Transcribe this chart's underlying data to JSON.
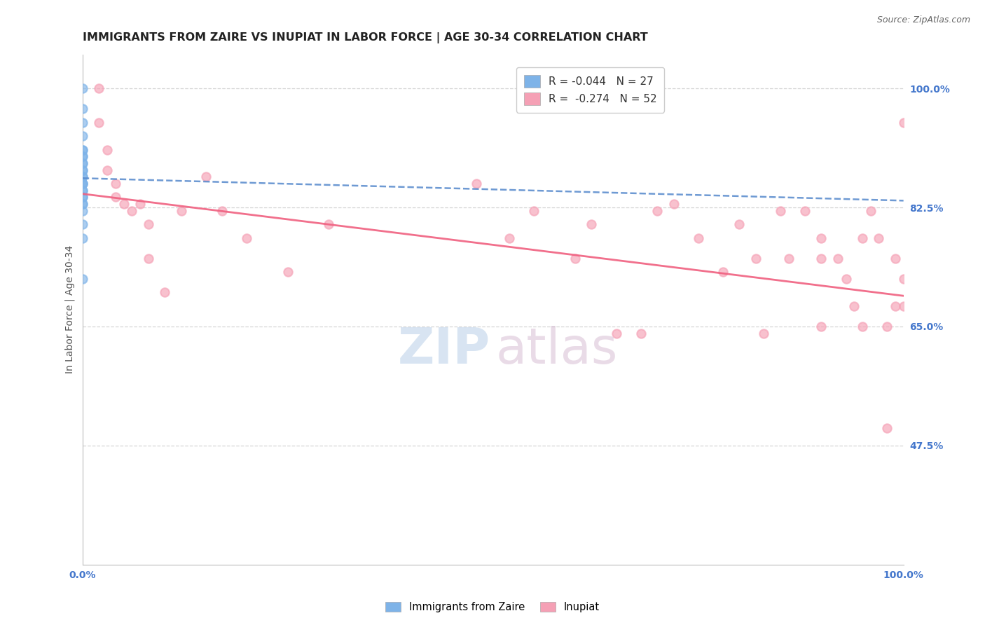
{
  "title": "IMMIGRANTS FROM ZAIRE VS INUPIAT IN LABOR FORCE | AGE 30-34 CORRELATION CHART",
  "source_text": "Source: ZipAtlas.com",
  "ylabel": "In Labor Force | Age 30-34",
  "xlim": [
    0.0,
    1.0
  ],
  "ylim": [
    0.3,
    1.05
  ],
  "ytick_labels": [
    "47.5%",
    "65.0%",
    "82.5%",
    "100.0%"
  ],
  "ytick_values": [
    0.475,
    0.65,
    0.825,
    1.0
  ],
  "xtick_labels": [
    "0.0%",
    "100.0%"
  ],
  "xtick_values": [
    0.0,
    1.0
  ],
  "legend_r_zaire": "-0.044",
  "legend_n_zaire": "27",
  "legend_r_inupiat": "-0.274",
  "legend_n_inupiat": "52",
  "zaire_color": "#7eb3e8",
  "inupiat_color": "#f5a0b5",
  "zaire_line_color": "#5588cc",
  "inupiat_line_color": "#f06080",
  "zaire_line_x0": 0.0,
  "zaire_line_x1": 1.0,
  "zaire_line_y0": 0.868,
  "zaire_line_y1": 0.835,
  "inupiat_line_x0": 0.0,
  "inupiat_line_x1": 1.0,
  "inupiat_line_y0": 0.845,
  "inupiat_line_y1": 0.695,
  "zaire_points_x": [
    0.0,
    0.0,
    0.0,
    0.0,
    0.0,
    0.0,
    0.0,
    0.0,
    0.0,
    0.0,
    0.0,
    0.0,
    0.0,
    0.0,
    0.0,
    0.0,
    0.0,
    0.0,
    0.0,
    0.0,
    0.0,
    0.0,
    0.0,
    0.0,
    0.0,
    0.0,
    0.0
  ],
  "zaire_points_y": [
    1.0,
    0.97,
    0.95,
    0.93,
    0.91,
    0.91,
    0.9,
    0.9,
    0.89,
    0.89,
    0.88,
    0.88,
    0.87,
    0.87,
    0.86,
    0.86,
    0.86,
    0.85,
    0.85,
    0.84,
    0.84,
    0.83,
    0.83,
    0.82,
    0.8,
    0.78,
    0.72
  ],
  "inupiat_points_x": [
    0.02,
    0.02,
    0.03,
    0.03,
    0.04,
    0.04,
    0.05,
    0.06,
    0.07,
    0.08,
    0.08,
    0.1,
    0.12,
    0.15,
    0.17,
    0.2,
    0.25,
    0.3,
    0.48,
    0.52,
    0.55,
    0.6,
    0.62,
    0.65,
    0.68,
    0.7,
    0.72,
    0.75,
    0.78,
    0.8,
    0.82,
    0.83,
    0.85,
    0.86,
    0.88,
    0.9,
    0.9,
    0.9,
    0.92,
    0.93,
    0.94,
    0.95,
    0.95,
    0.96,
    0.97,
    0.98,
    0.98,
    0.99,
    0.99,
    1.0,
    1.0,
    1.0
  ],
  "inupiat_points_y": [
    1.0,
    0.95,
    0.91,
    0.88,
    0.86,
    0.84,
    0.83,
    0.82,
    0.83,
    0.8,
    0.75,
    0.7,
    0.82,
    0.87,
    0.82,
    0.78,
    0.73,
    0.8,
    0.86,
    0.78,
    0.82,
    0.75,
    0.8,
    0.64,
    0.64,
    0.82,
    0.83,
    0.78,
    0.73,
    0.8,
    0.75,
    0.64,
    0.82,
    0.75,
    0.82,
    0.78,
    0.75,
    0.65,
    0.75,
    0.72,
    0.68,
    0.78,
    0.65,
    0.82,
    0.78,
    0.5,
    0.65,
    0.75,
    0.68,
    0.95,
    0.72,
    0.68
  ],
  "title_fontsize": 11.5,
  "axis_label_fontsize": 10,
  "tick_label_fontsize": 10,
  "legend_fontsize": 11,
  "watermark_zip_fontsize": 52,
  "watermark_atlas_fontsize": 52,
  "source_fontsize": 9,
  "marker_size": 80,
  "grid_color": "#cccccc",
  "background_color": "#ffffff",
  "title_color": "#222222",
  "tick_color": "#4477cc",
  "ylabel_color": "#555555"
}
